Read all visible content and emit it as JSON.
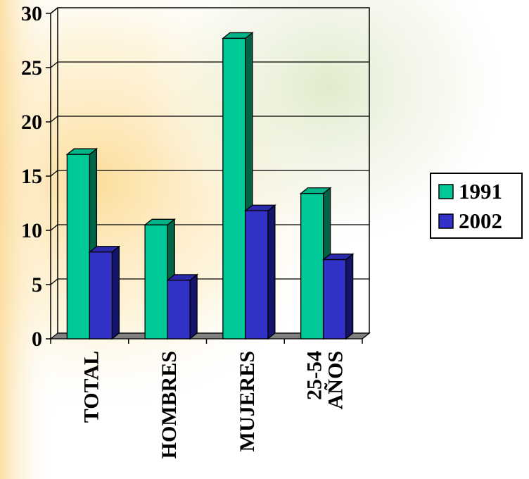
{
  "chart_data": {
    "type": "bar",
    "categories": [
      [
        "TOTAL"
      ],
      [
        "HOMBRES"
      ],
      [
        "MUJERES"
      ],
      [
        "25-54",
        "AÑOS"
      ]
    ],
    "series": [
      {
        "name": "1991",
        "values": [
          17,
          10.5,
          27.7,
          13.4
        ]
      },
      {
        "name": "2002",
        "values": [
          8,
          5.4,
          11.8,
          7.3
        ]
      }
    ],
    "ylim": [
      0,
      30
    ],
    "yticks": [
      0,
      5,
      10,
      15,
      20,
      25,
      30
    ],
    "grid": true,
    "legend_position": "right",
    "colors": {
      "series": [
        "#00c896",
        "#3232c8"
      ],
      "series_top": [
        "#00b487",
        "#2a2aaa"
      ],
      "series_side": [
        "#006446",
        "#14146a"
      ],
      "floor": "#808080",
      "background_wash": "#f5d080"
    },
    "title": "",
    "xlabel": "",
    "ylabel": ""
  }
}
